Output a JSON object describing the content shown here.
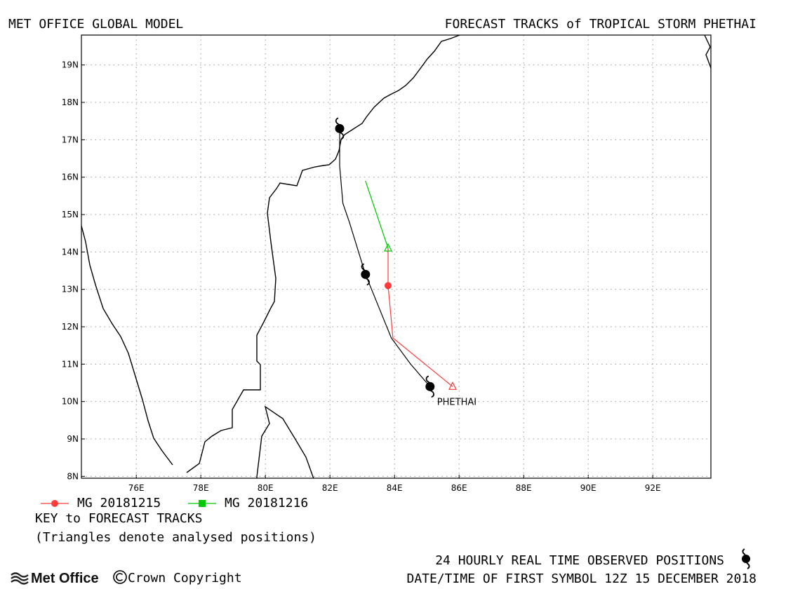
{
  "header": {
    "left_title": "MET OFFICE GLOBAL MODEL",
    "right_title": "FORECAST TRACKS of TROPICAL STORM PHETHAI"
  },
  "map": {
    "lon_range": [
      74.3,
      93.8
    ],
    "lat_range": [
      7.95,
      19.8
    ],
    "lon_ticks": [
      "76E",
      "78E",
      "80E",
      "82E",
      "84E",
      "86E",
      "88E",
      "90E",
      "92E"
    ],
    "lat_ticks": [
      "8N",
      "9N",
      "10N",
      "11N",
      "12N",
      "13N",
      "14N",
      "15N",
      "16N",
      "17N",
      "18N",
      "19N"
    ],
    "grid": true,
    "colors": {
      "observed": "#000000",
      "mg_20181215": "#ff3b3b",
      "mg_20181216": "#00c800",
      "coast": "#000000"
    }
  },
  "storm_label": "PHETHAI",
  "chart_data": {
    "type": "line",
    "observed_track": {
      "points": [
        [
          85.1,
          10.4
        ],
        [
          84.5,
          11.0
        ],
        [
          83.9,
          11.7
        ],
        [
          83.1,
          13.4
        ],
        [
          82.6,
          14.8
        ],
        [
          82.4,
          15.3
        ],
        [
          82.3,
          16.3
        ],
        [
          82.3,
          17.3
        ]
      ],
      "symbol_positions": [
        [
          85.1,
          10.4
        ],
        [
          83.1,
          13.4
        ],
        [
          82.3,
          17.3
        ]
      ]
    },
    "series": [
      {
        "name": "MG 20181215",
        "color": "#ff3b3b",
        "points": [
          [
            85.8,
            10.4
          ],
          [
            83.95,
            11.7
          ],
          [
            83.8,
            13.1
          ],
          [
            83.8,
            14.1
          ]
        ],
        "analysed_position": [
          85.8,
          10.4
        ],
        "forecast_markers": [
          [
            83.8,
            13.1
          ]
        ]
      },
      {
        "name": "MG 20181216",
        "color": "#00c800",
        "points": [
          [
            83.8,
            14.1
          ],
          [
            83.1,
            15.9
          ]
        ],
        "analysed_position": [
          83.8,
          14.1
        ],
        "forecast_markers": []
      }
    ]
  },
  "legend": {
    "items": [
      {
        "label": "MG 20181215",
        "color": "#ff3b3b",
        "marker": "circle"
      },
      {
        "label": "MG 20181216",
        "color": "#00c800",
        "marker": "square"
      }
    ],
    "key_title": "KEY to FORECAST TRACKS",
    "key_note": "(Triangles denote analysed positions)"
  },
  "footer": {
    "observed_label": "24 HOURLY REAL TIME OBSERVED POSITIONS",
    "first_symbol": "DATE/TIME OF FIRST SYMBOL 12Z 15 DECEMBER 2018",
    "logo_text": "Met Office",
    "copyright": "Crown Copyright"
  },
  "icons": {
    "cyclone": "tropical-storm-symbol",
    "logo": "met-office-wave-icon"
  }
}
